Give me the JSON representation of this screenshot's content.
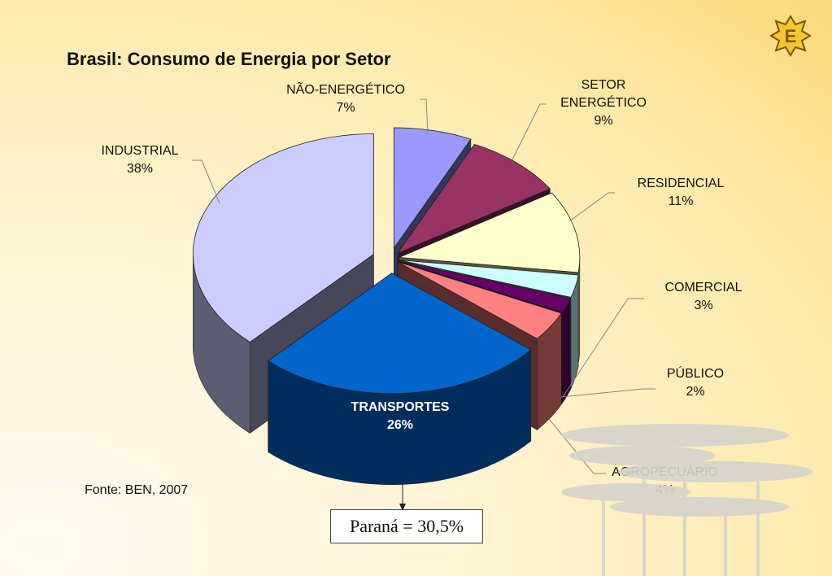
{
  "chart_data": {
    "type": "pie",
    "title": "Brasil: Consumo de Energia por Setor",
    "slices": [
      {
        "label": "NÃO-ENERGÉTICO",
        "value": 7,
        "value_label": "7%",
        "color": "#9999ff"
      },
      {
        "label": "SETOR ENERGÉTICO",
        "value": 9,
        "value_label": "9%",
        "color": "#993366"
      },
      {
        "label": "RESIDENCIAL",
        "value": 11,
        "value_label": "11%",
        "color": "#ffffcc"
      },
      {
        "label": "COMERCIAL",
        "value": 3,
        "value_label": "3%",
        "color": "#ccffff"
      },
      {
        "label": "PÚBLICO",
        "value": 2,
        "value_label": "2%",
        "color": "#660066"
      },
      {
        "label": "AGROPECUÁRIO",
        "value": 4,
        "value_label": "4%",
        "color": "#ff8080"
      },
      {
        "label": "TRANSPORTES",
        "value": 26,
        "value_label": "26%",
        "color": "#0066cc"
      },
      {
        "label": "INDUSTRIAL",
        "value": 38,
        "value_label": "38%",
        "color": "#ccccff"
      }
    ],
    "exploded": true,
    "style": "3d"
  },
  "labels": {
    "nao_energetico": {
      "name": "NÃO-ENERGÉTICO",
      "pct": "7%"
    },
    "setor_energetico": {
      "name1": "SETOR",
      "name2": "ENERGÉTICO",
      "pct": "9%"
    },
    "residencial": {
      "name": "RESIDENCIAL",
      "pct": "11%"
    },
    "comercial": {
      "name": "COMERCIAL",
      "pct": "3%"
    },
    "publico": {
      "name": "PÚBLICO",
      "pct": "2%"
    },
    "agropecuario": {
      "name": "AGROPECUÁRIO",
      "pct": "4%"
    },
    "transportes": {
      "name": "TRANSPORTES",
      "pct": "26%"
    },
    "industrial": {
      "name": "INDUSTRIAL",
      "pct": "38%"
    }
  },
  "source": "Fonte: BEN, 2007",
  "note": "Paraná = 30,5%",
  "logo": {
    "letter": "E",
    "icon": "star-logo-icon"
  }
}
